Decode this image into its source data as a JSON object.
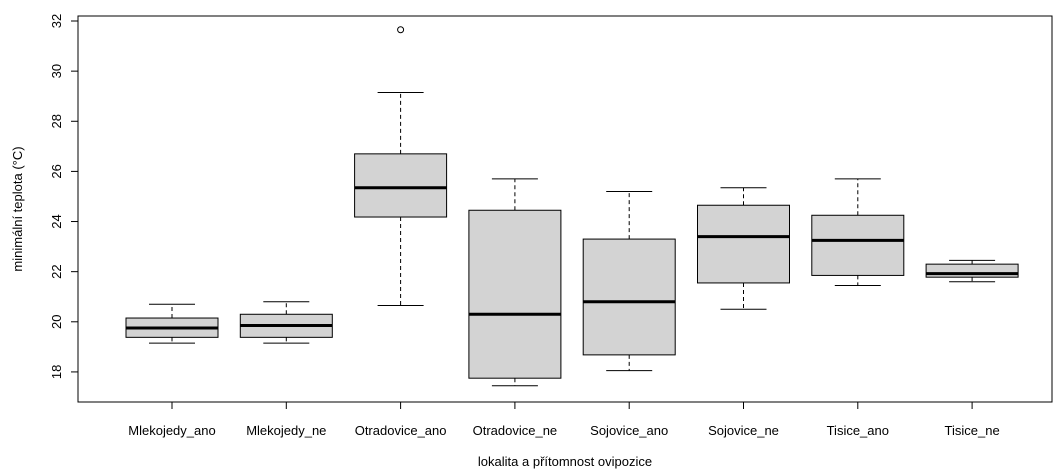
{
  "chart_data": {
    "type": "boxplot",
    "xlabel": "lokalita a přítomnost ovipozice",
    "ylabel": "minimální teplota (°C)",
    "ylim": [
      16.8,
      32.2
    ],
    "yticks": [
      18,
      20,
      22,
      24,
      26,
      28,
      30,
      32
    ],
    "grid": false,
    "box_fill": "#d3d3d3",
    "categories": [
      "Mlekojedy_ano",
      "Mlekojedy_ne",
      "Otradovice_ano",
      "Otradovice_ne",
      "Sojovice_ano",
      "Sojovice_ne",
      "Tisice_ano",
      "Tisice_ne"
    ],
    "boxes": [
      {
        "whisker_low": 19.15,
        "q1": 19.38,
        "median": 19.75,
        "q3": 20.15,
        "whisker_high": 20.7,
        "outliers": []
      },
      {
        "whisker_low": 19.15,
        "q1": 19.38,
        "median": 19.85,
        "q3": 20.3,
        "whisker_high": 20.8,
        "outliers": []
      },
      {
        "whisker_low": 20.65,
        "q1": 24.18,
        "median": 25.35,
        "q3": 26.7,
        "whisker_high": 29.15,
        "outliers": [
          31.65
        ]
      },
      {
        "whisker_low": 17.45,
        "q1": 17.75,
        "median": 20.3,
        "q3": 24.45,
        "whisker_high": 25.7,
        "outliers": []
      },
      {
        "whisker_low": 18.05,
        "q1": 18.68,
        "median": 20.8,
        "q3": 23.3,
        "whisker_high": 25.2,
        "outliers": []
      },
      {
        "whisker_low": 20.5,
        "q1": 21.55,
        "median": 23.4,
        "q3": 24.65,
        "whisker_high": 25.35,
        "outliers": []
      },
      {
        "whisker_low": 21.45,
        "q1": 21.85,
        "median": 23.25,
        "q3": 24.25,
        "whisker_high": 25.7,
        "outliers": []
      },
      {
        "whisker_low": 21.6,
        "q1": 21.78,
        "median": 21.92,
        "q3": 22.3,
        "whisker_high": 22.45,
        "outliers": []
      }
    ]
  }
}
